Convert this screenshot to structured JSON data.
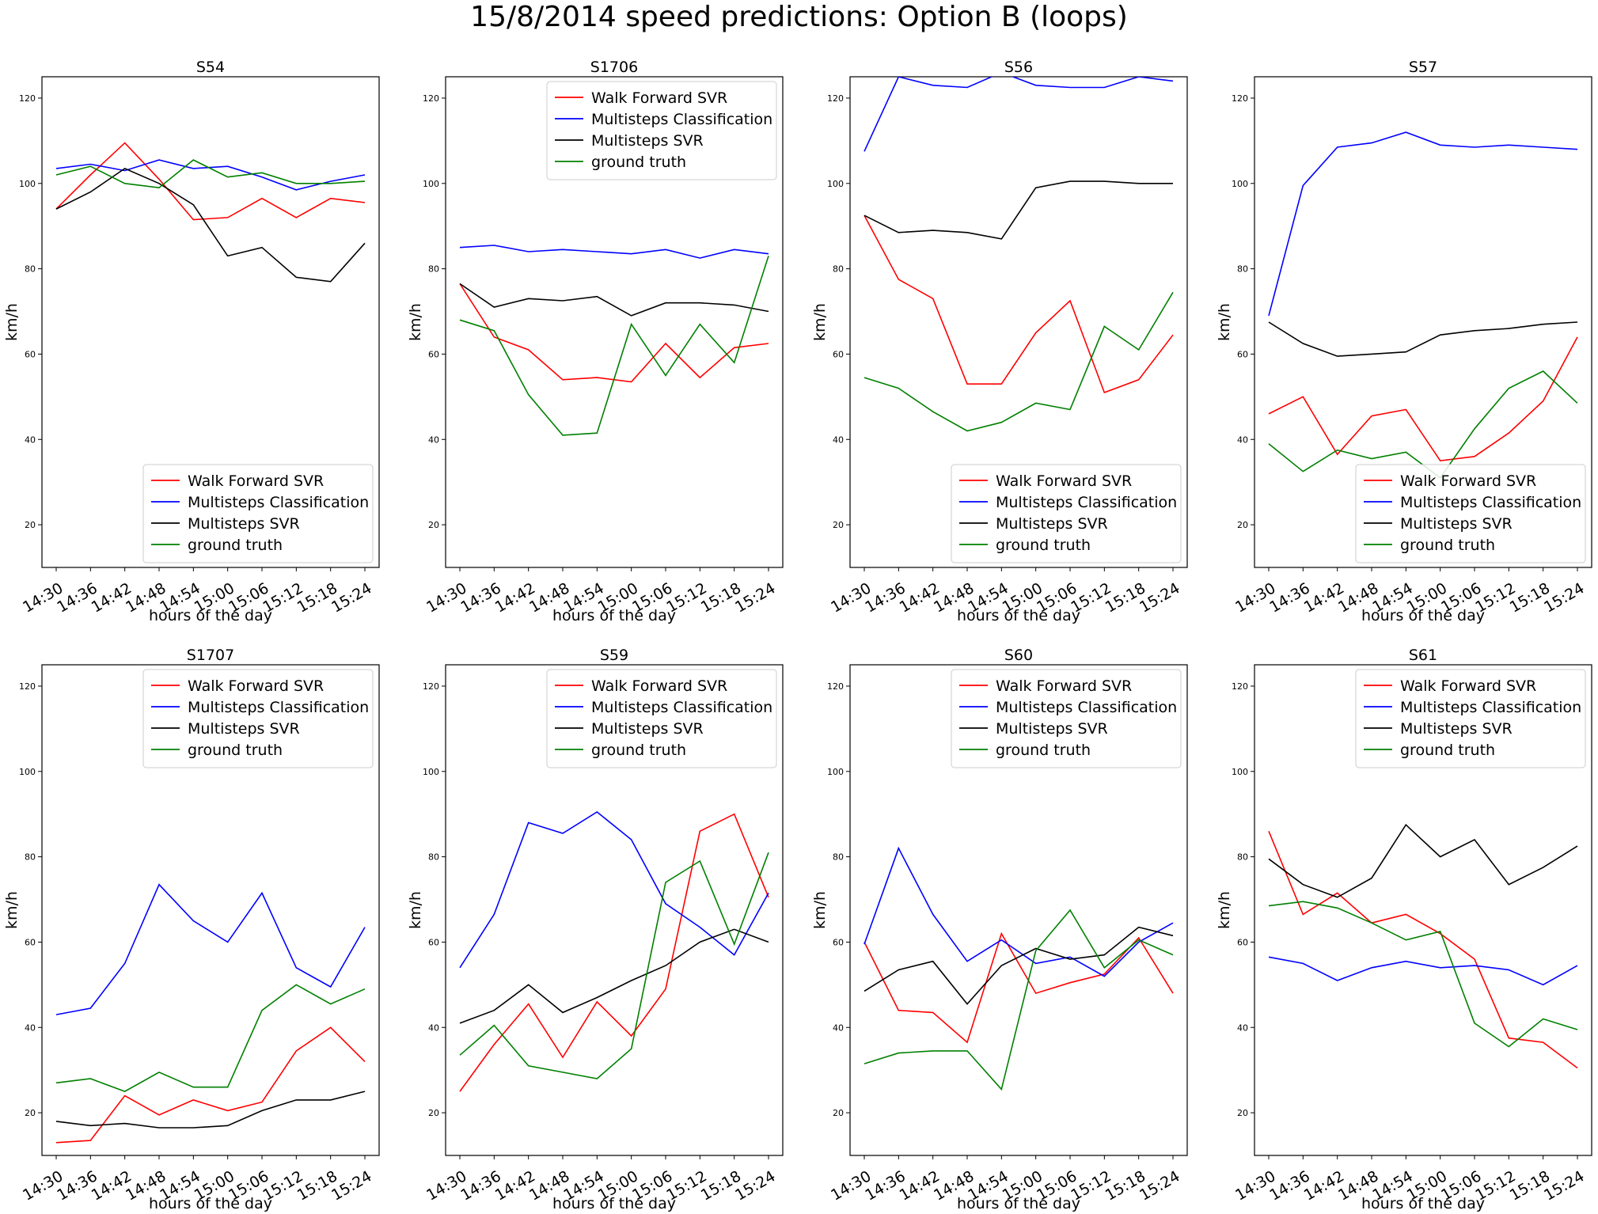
{
  "figure": {
    "title": "15/8/2014 speed predictions: Option B (loops)"
  },
  "series_styles": [
    {
      "name": "Walk Forward SVR",
      "color": "#ff0000"
    },
    {
      "name": "Multisteps Classification",
      "color": "#0000ff"
    },
    {
      "name": "Multisteps SVR",
      "color": "#000000"
    },
    {
      "name": "ground truth",
      "color": "#008000"
    }
  ],
  "chart_data": [
    {
      "type": "line",
      "title": "S54",
      "xlabel": "hours of the day",
      "ylabel": "km/h",
      "ylim": [
        10,
        125
      ],
      "yticks": [
        20,
        40,
        60,
        80,
        100,
        120
      ],
      "x": [
        "14:30",
        "14:36",
        "14:42",
        "14:48",
        "14:54",
        "15:00",
        "15:06",
        "15:12",
        "15:18",
        "15:24"
      ],
      "legend": "lower-right",
      "series": [
        {
          "name": "Walk Forward SVR",
          "values": [
            94,
            102,
            109.5,
            101,
            91.5,
            92,
            96.5,
            92,
            96.5,
            95.5
          ]
        },
        {
          "name": "Multisteps Classification",
          "values": [
            103.5,
            104.5,
            103,
            105.5,
            103.5,
            104,
            101.5,
            98.5,
            100.5,
            102
          ]
        },
        {
          "name": "Multisteps SVR",
          "values": [
            94,
            98,
            103.5,
            100,
            95,
            83,
            85,
            78,
            77,
            86
          ]
        },
        {
          "name": "ground truth",
          "values": [
            102,
            104,
            100,
            99,
            105.5,
            101.5,
            102.5,
            100,
            100,
            100.5
          ]
        }
      ]
    },
    {
      "type": "line",
      "title": "S1706",
      "xlabel": "hours of the day",
      "ylabel": "km/h",
      "ylim": [
        10,
        125
      ],
      "yticks": [
        20,
        40,
        60,
        80,
        100,
        120
      ],
      "x": [
        "14:30",
        "14:36",
        "14:42",
        "14:48",
        "14:54",
        "15:00",
        "15:06",
        "15:12",
        "15:18",
        "15:24"
      ],
      "legend": "upper-right",
      "series": [
        {
          "name": "Walk Forward SVR",
          "values": [
            76.5,
            64,
            61,
            54,
            54.5,
            53.5,
            62.5,
            54.5,
            61.5,
            62.5
          ]
        },
        {
          "name": "Multisteps Classification",
          "values": [
            85,
            85.5,
            84,
            84.5,
            84,
            83.5,
            84.5,
            82.5,
            84.5,
            83.5
          ]
        },
        {
          "name": "Multisteps SVR",
          "values": [
            76.5,
            71,
            73,
            72.5,
            73.5,
            69,
            72,
            72,
            71.5,
            70
          ]
        },
        {
          "name": "ground truth",
          "values": [
            68,
            65.5,
            50.5,
            41,
            41.5,
            67,
            55,
            67,
            58,
            83
          ]
        }
      ]
    },
    {
      "type": "line",
      "title": "S56",
      "xlabel": "hours of the day",
      "ylabel": "km/h",
      "ylim": [
        10,
        125
      ],
      "yticks": [
        20,
        40,
        60,
        80,
        100,
        120
      ],
      "x": [
        "14:30",
        "14:36",
        "14:42",
        "14:48",
        "14:54",
        "15:00",
        "15:06",
        "15:12",
        "15:18",
        "15:24"
      ],
      "legend": "lower-right",
      "series": [
        {
          "name": "Walk Forward SVR",
          "values": [
            92.5,
            77.5,
            73,
            53,
            53,
            65,
            72.5,
            51,
            54,
            64.5
          ]
        },
        {
          "name": "Multisteps Classification",
          "values": [
            107.5,
            125,
            123,
            122.5,
            126,
            123,
            122.5,
            122.5,
            125,
            124
          ]
        },
        {
          "name": "Multisteps SVR",
          "values": [
            92.5,
            88.5,
            89,
            88.5,
            87,
            99,
            100.5,
            100.5,
            100,
            100
          ]
        },
        {
          "name": "ground truth",
          "values": [
            54.5,
            52,
            46.5,
            42,
            44,
            48.5,
            47,
            66.5,
            61,
            74.5
          ]
        }
      ]
    },
    {
      "type": "line",
      "title": "S57",
      "xlabel": "hours of the day",
      "ylabel": "km/h",
      "ylim": [
        10,
        125
      ],
      "yticks": [
        20,
        40,
        60,
        80,
        100,
        120
      ],
      "x": [
        "14:30",
        "14:36",
        "14:42",
        "14:48",
        "14:54",
        "15:00",
        "15:06",
        "15:12",
        "15:18",
        "15:24"
      ],
      "legend": "lower-right",
      "series": [
        {
          "name": "Walk Forward SVR",
          "values": [
            46,
            50,
            36.5,
            45.5,
            47,
            35,
            36,
            41.5,
            49,
            64
          ]
        },
        {
          "name": "Multisteps Classification",
          "values": [
            69,
            99.5,
            108.5,
            109.5,
            112,
            109,
            108.5,
            109,
            108.5,
            108
          ]
        },
        {
          "name": "Multisteps SVR",
          "values": [
            67.5,
            62.5,
            59.5,
            60,
            60.5,
            64.5,
            65.5,
            66,
            67,
            67.5
          ]
        },
        {
          "name": "ground truth",
          "values": [
            39,
            32.5,
            37.5,
            35.5,
            37,
            31,
            42.5,
            52,
            56,
            48.5
          ]
        }
      ]
    },
    {
      "type": "line",
      "title": "S1707",
      "xlabel": "hours of the day",
      "ylabel": "km/h",
      "ylim": [
        10,
        125
      ],
      "yticks": [
        20,
        40,
        60,
        80,
        100,
        120
      ],
      "x": [
        "14:30",
        "14:36",
        "14:42",
        "14:48",
        "14:54",
        "15:00",
        "15:06",
        "15:12",
        "15:18",
        "15:24"
      ],
      "legend": "upper-right",
      "series": [
        {
          "name": "Walk Forward SVR",
          "values": [
            13,
            13.5,
            24,
            19.5,
            23,
            20.5,
            22.5,
            34.5,
            40,
            32
          ]
        },
        {
          "name": "Multisteps Classification",
          "values": [
            43,
            44.5,
            55,
            73.5,
            65,
            60,
            71.5,
            54,
            49.5,
            63.5
          ]
        },
        {
          "name": "Multisteps SVR",
          "values": [
            18,
            17,
            17.5,
            16.5,
            16.5,
            17,
            20.5,
            23,
            23,
            25
          ]
        },
        {
          "name": "ground truth",
          "values": [
            27,
            28,
            25,
            29.5,
            26,
            26,
            44,
            50,
            45.5,
            49
          ]
        }
      ]
    },
    {
      "type": "line",
      "title": "S59",
      "xlabel": "hours of the day",
      "ylabel": "km/h",
      "ylim": [
        10,
        125
      ],
      "yticks": [
        20,
        40,
        60,
        80,
        100,
        120
      ],
      "x": [
        "14:30",
        "14:36",
        "14:42",
        "14:48",
        "14:54",
        "15:00",
        "15:06",
        "15:12",
        "15:18",
        "15:24"
      ],
      "legend": "upper-right",
      "series": [
        {
          "name": "Walk Forward SVR",
          "values": [
            25,
            36,
            45.5,
            33,
            46,
            38,
            49,
            86,
            90,
            70.5
          ]
        },
        {
          "name": "Multisteps Classification",
          "values": [
            54,
            66.5,
            88,
            85.5,
            90.5,
            84,
            69,
            63.5,
            57,
            71.5
          ]
        },
        {
          "name": "Multisteps SVR",
          "values": [
            41,
            44,
            50,
            43.5,
            47,
            51,
            54.5,
            60,
            63,
            60
          ]
        },
        {
          "name": "ground truth",
          "values": [
            33.5,
            40.5,
            31,
            29.5,
            28,
            35,
            74,
            79,
            59.5,
            81
          ]
        }
      ]
    },
    {
      "type": "line",
      "title": "S60",
      "xlabel": "hours of the day",
      "ylabel": "km/h",
      "ylim": [
        10,
        125
      ],
      "yticks": [
        20,
        40,
        60,
        80,
        100,
        120
      ],
      "x": [
        "14:30",
        "14:36",
        "14:42",
        "14:48",
        "14:54",
        "15:00",
        "15:06",
        "15:12",
        "15:18",
        "15:24"
      ],
      "legend": "upper-right",
      "series": [
        {
          "name": "Walk Forward SVR",
          "values": [
            60,
            44,
            43.5,
            36.5,
            62,
            48,
            50.5,
            52.5,
            61,
            48
          ]
        },
        {
          "name": "Multisteps Classification",
          "values": [
            59.5,
            82,
            66.5,
            55.5,
            60.5,
            55,
            56.5,
            52,
            60,
            64.5
          ]
        },
        {
          "name": "Multisteps SVR",
          "values": [
            48.5,
            53.5,
            55.5,
            45.5,
            54.5,
            58.5,
            56,
            57,
            63.5,
            61.5
          ]
        },
        {
          "name": "ground truth",
          "values": [
            31.5,
            34,
            34.5,
            34.5,
            25.5,
            58,
            67.5,
            54,
            60.5,
            57
          ]
        }
      ]
    },
    {
      "type": "line",
      "title": "S61",
      "xlabel": "hours of the day",
      "ylabel": "km/h",
      "ylim": [
        10,
        125
      ],
      "yticks": [
        20,
        40,
        60,
        80,
        100,
        120
      ],
      "x": [
        "14:30",
        "14:36",
        "14:42",
        "14:48",
        "14:54",
        "15:00",
        "15:06",
        "15:12",
        "15:18",
        "15:24"
      ],
      "legend": "upper-right",
      "series": [
        {
          "name": "Walk Forward SVR",
          "values": [
            86,
            66.5,
            71.5,
            64.5,
            66.5,
            62,
            56,
            37.5,
            36.5,
            30.5
          ]
        },
        {
          "name": "Multisteps Classification",
          "values": [
            56.5,
            55,
            51,
            54,
            55.5,
            54,
            54.5,
            53.5,
            50,
            54.5
          ]
        },
        {
          "name": "Multisteps SVR",
          "values": [
            79.5,
            73.5,
            70.5,
            75,
            87.5,
            80,
            84,
            73.5,
            77.5,
            82.5
          ]
        },
        {
          "name": "ground truth",
          "values": [
            68.5,
            69.5,
            68,
            64.5,
            60.5,
            62.5,
            41,
            35.5,
            42,
            39.5
          ]
        }
      ]
    }
  ]
}
